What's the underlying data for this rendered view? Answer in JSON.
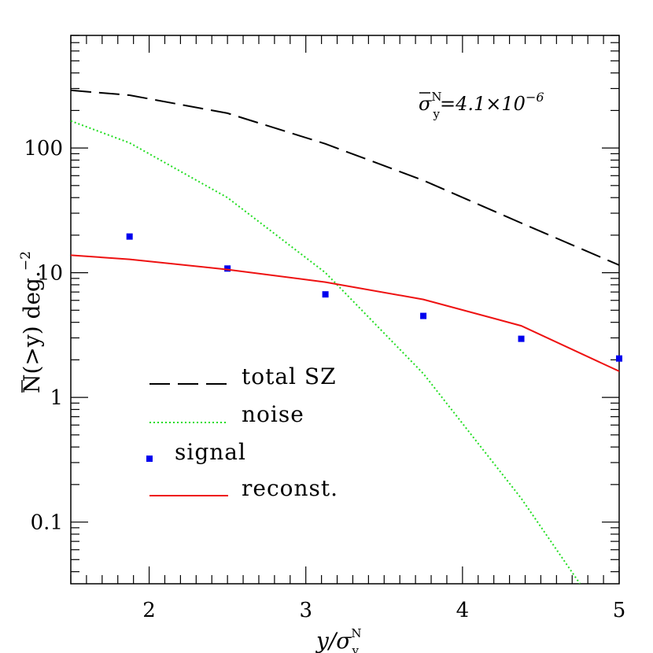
{
  "chart_data": {
    "type": "line",
    "title": "",
    "xlabel": "y/σ",
    "xlabel_sup": "N",
    "xlabel_sub": "y",
    "ylabel_over": "N",
    "ylabel_rest": "(>y)  deg.",
    "ylabel_exp": "−2",
    "xlim": [
      1.5,
      5
    ],
    "ylim": [
      0.032,
      800
    ],
    "y_scale": "log",
    "grid": false,
    "x_ticks": [
      2,
      3,
      4,
      5
    ],
    "x_tick_labels": [
      "2",
      "3",
      "4",
      "5"
    ],
    "y_ticks": [
      0.1,
      1,
      10,
      100
    ],
    "y_tick_labels": [
      "0.1",
      "1",
      "10",
      "100"
    ],
    "annotation": {
      "sigma": "σ",
      "sup": "N",
      "sub": "y",
      "value": "=4.1×10",
      "exp": "−6"
    },
    "legend_position": "lower-left",
    "series": [
      {
        "name": "total SZ",
        "style": "dashed",
        "color": "#000000",
        "x": [
          1.5,
          1.875,
          2.5,
          3.125,
          3.75,
          4.375,
          5.0
        ],
        "y": [
          290,
          265,
          190,
          108,
          55,
          25,
          11.5
        ]
      },
      {
        "name": "noise",
        "style": "dotted",
        "color": "#22dd22",
        "x": [
          1.5,
          1.875,
          2.5,
          3.125,
          3.75,
          4.375,
          4.75
        ],
        "y": [
          165,
          110,
          40,
          10,
          1.55,
          0.155,
          0.032
        ]
      },
      {
        "name": "signal",
        "style": "markers",
        "color": "#0000ee",
        "x": [
          1.875,
          2.5,
          3.125,
          3.75,
          4.375,
          5.0
        ],
        "y": [
          19.5,
          10.8,
          6.7,
          4.5,
          2.95,
          2.05
        ]
      },
      {
        "name": "reconst.",
        "style": "solid",
        "color": "#ee1111",
        "x": [
          1.5,
          1.875,
          2.5,
          3.125,
          3.75,
          4.375,
          5.0
        ],
        "y": [
          13.8,
          12.8,
          10.6,
          8.4,
          6.1,
          3.75,
          1.62
        ]
      }
    ]
  }
}
